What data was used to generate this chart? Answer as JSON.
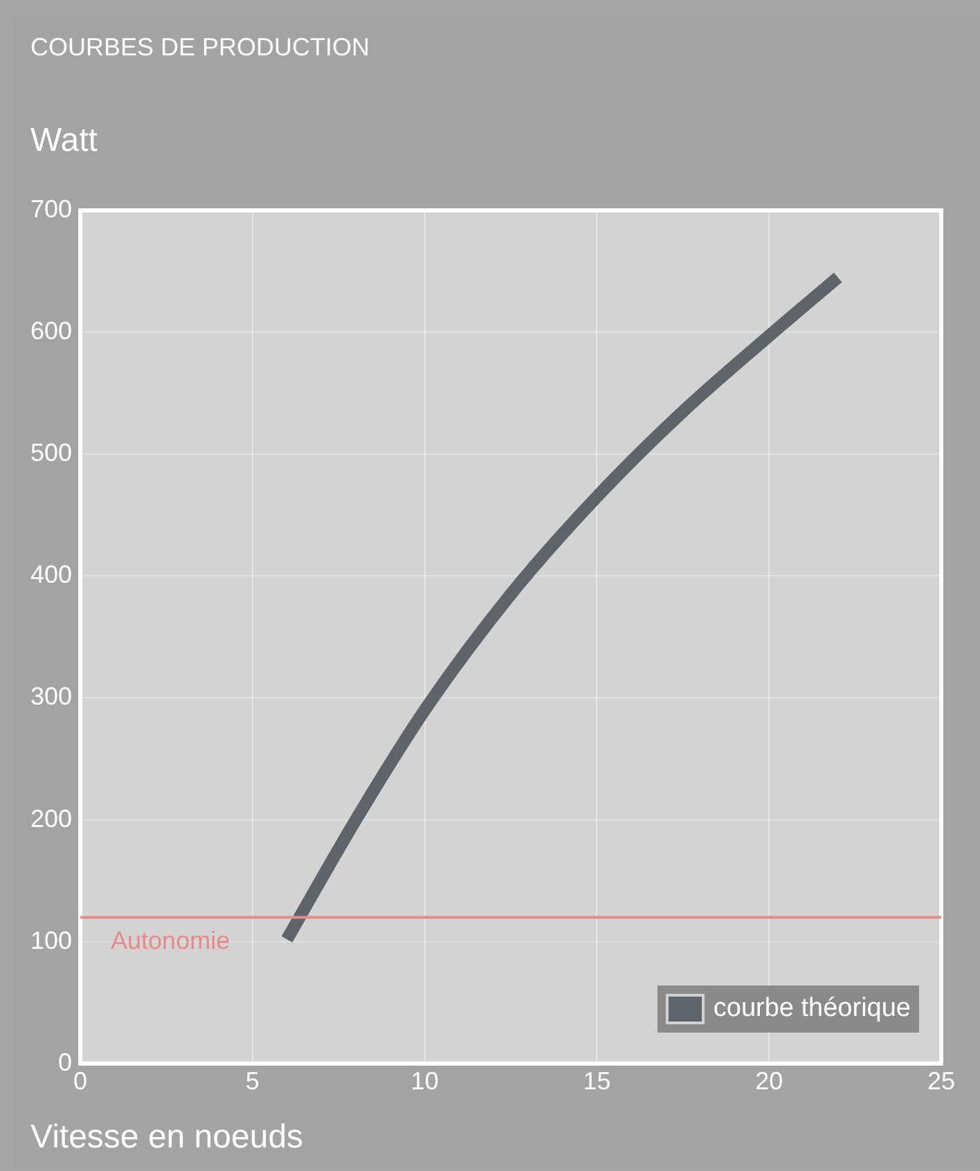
{
  "chart_data": {
    "type": "line",
    "title": "COURBES DE PRODUCTION",
    "ylabel": "Watt",
    "xlabel": "Vitesse en noeuds",
    "series": [
      {
        "name": "courbe théorique",
        "color": "#5f6469",
        "x": [
          6,
          8,
          10,
          12.5,
          15,
          17.5,
          20,
          22
        ],
        "values": [
          102,
          200,
          290,
          385,
          465,
          535,
          597,
          645
        ]
      }
    ],
    "xlim": [
      0,
      25
    ],
    "xticks": [
      0,
      5,
      10,
      15,
      20,
      25
    ],
    "ylim": [
      0,
      700
    ],
    "yticks": [
      0,
      100,
      200,
      300,
      400,
      500,
      600,
      700
    ],
    "grid": true,
    "legend": "bottom right",
    "marker": "none",
    "line_style": "solid",
    "ref_lines": [
      {
        "axis": "y",
        "value": 120,
        "label": "Autonomie",
        "color": "#e88a8a"
      }
    ]
  }
}
